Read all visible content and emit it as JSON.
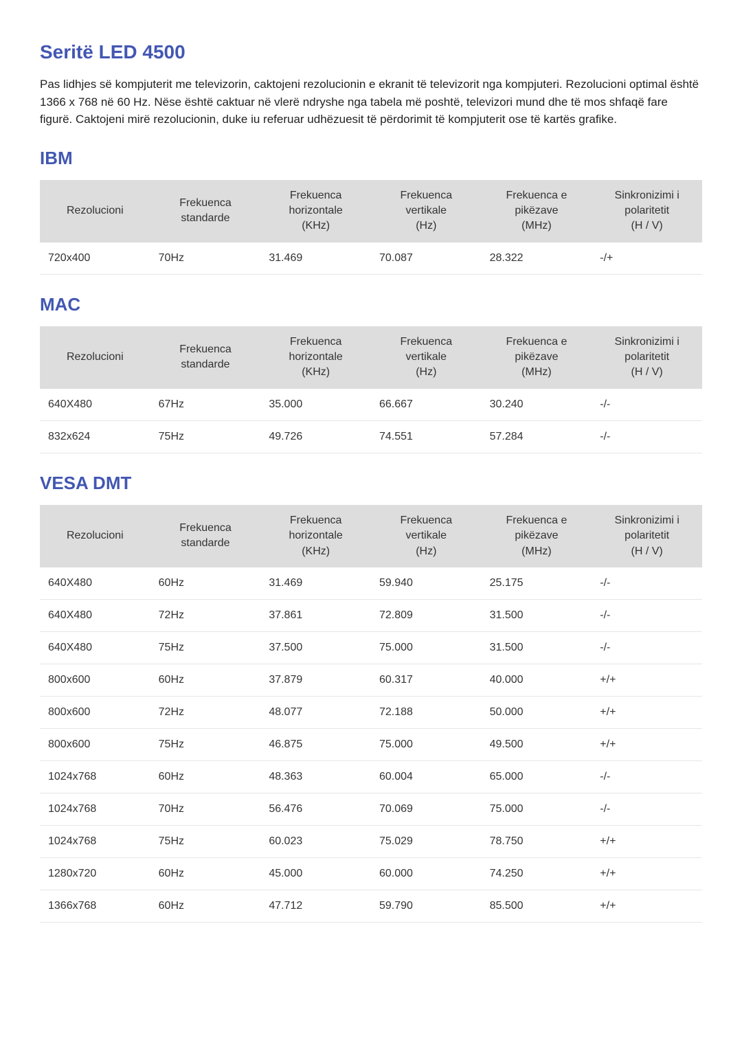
{
  "page": {
    "title": "Seritë LED 4500",
    "description": "Pas lidhjes së kompjuterit me televizorin, caktojeni rezolucionin e ekranit të televizorit nga kompjuteri. Rezolucioni optimal është 1366 x 768 në 60 Hz. Nëse është caktuar në vlerë ndryshe nga tabela më poshtë, televizori mund dhe të mos shfaqë fare figurë. Caktojeni mirë rezolucionin, duke iu referuar udhëzuesit të përdorimit të kompjuterit ose të kartës grafike."
  },
  "table_headers": {
    "col1": {
      "line1": "Rezolucioni",
      "line2": ""
    },
    "col2": {
      "line1": "Frekuenca",
      "line2": "standarde"
    },
    "col3": {
      "line1": "Frekuenca",
      "line2": "horizontale",
      "line3": "(KHz)"
    },
    "col4": {
      "line1": "Frekuenca",
      "line2": "vertikale",
      "line3": "(Hz)"
    },
    "col5": {
      "line1": "Frekuenca e",
      "line2": "pikëzave",
      "line3": "(MHz)"
    },
    "col6": {
      "line1": "Sinkronizimi i",
      "line2": "polaritetit",
      "line3": "(H / V)"
    }
  },
  "sections": [
    {
      "title": "IBM",
      "rows": [
        {
          "c1": "720x400",
          "c2": "70Hz",
          "c3": "31.469",
          "c4": "70.087",
          "c5": "28.322",
          "c6": "-/+"
        }
      ]
    },
    {
      "title": "MAC",
      "rows": [
        {
          "c1": "640X480",
          "c2": "67Hz",
          "c3": "35.000",
          "c4": "66.667",
          "c5": "30.240",
          "c6": "-/-"
        },
        {
          "c1": "832x624",
          "c2": "75Hz",
          "c3": "49.726",
          "c4": "74.551",
          "c5": "57.284",
          "c6": "-/-"
        }
      ]
    },
    {
      "title": "VESA DMT",
      "rows": [
        {
          "c1": "640X480",
          "c2": "60Hz",
          "c3": "31.469",
          "c4": "59.940",
          "c5": "25.175",
          "c6": "-/-"
        },
        {
          "c1": "640X480",
          "c2": "72Hz",
          "c3": "37.861",
          "c4": "72.809",
          "c5": "31.500",
          "c6": "-/-"
        },
        {
          "c1": "640X480",
          "c2": "75Hz",
          "c3": "37.500",
          "c4": "75.000",
          "c5": "31.500",
          "c6": "-/-"
        },
        {
          "c1": "800x600",
          "c2": "60Hz",
          "c3": "37.879",
          "c4": "60.317",
          "c5": "40.000",
          "c6": "+/+"
        },
        {
          "c1": "800x600",
          "c2": "72Hz",
          "c3": "48.077",
          "c4": "72.188",
          "c5": "50.000",
          "c6": "+/+"
        },
        {
          "c1": "800x600",
          "c2": "75Hz",
          "c3": "46.875",
          "c4": "75.000",
          "c5": "49.500",
          "c6": "+/+"
        },
        {
          "c1": "1024x768",
          "c2": "60Hz",
          "c3": "48.363",
          "c4": "60.004",
          "c5": "65.000",
          "c6": "-/-"
        },
        {
          "c1": "1024x768",
          "c2": "70Hz",
          "c3": "56.476",
          "c4": "70.069",
          "c5": "75.000",
          "c6": "-/-"
        },
        {
          "c1": "1024x768",
          "c2": "75Hz",
          "c3": "60.023",
          "c4": "75.029",
          "c5": "78.750",
          "c6": "+/+"
        },
        {
          "c1": "1280x720",
          "c2": "60Hz",
          "c3": "45.000",
          "c4": "60.000",
          "c5": "74.250",
          "c6": "+/+"
        },
        {
          "c1": "1366x768",
          "c2": "60Hz",
          "c3": "47.712",
          "c4": "59.790",
          "c5": "85.500",
          "c6": "+/+"
        }
      ]
    }
  ],
  "styling": {
    "title_color": "#4257b2",
    "section_title_color": "#4257b2",
    "header_bg": "#dddddd",
    "row_border": "#e6e6e6",
    "text_color": "#333333",
    "body_bg": "#ffffff",
    "body_font_size": 16,
    "title_font_size": 28,
    "section_title_font_size": 26
  }
}
